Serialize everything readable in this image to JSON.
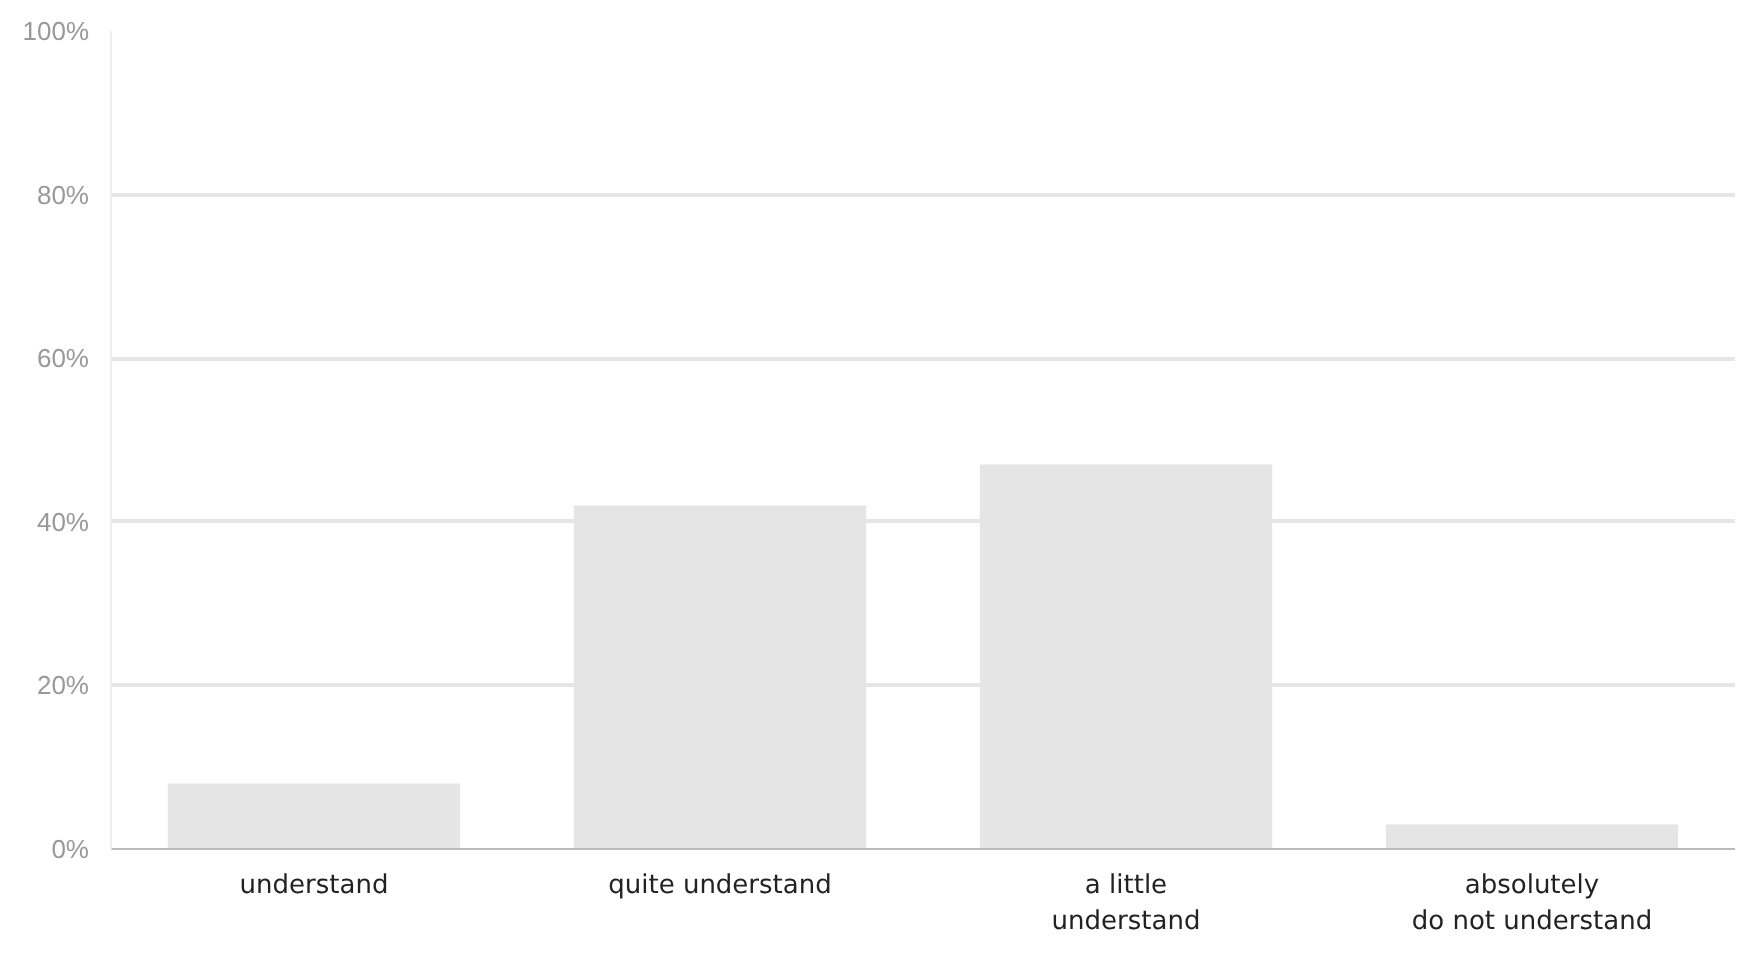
{
  "chart_data": {
    "type": "bar",
    "categories": [
      "understand",
      "quite understand",
      "a little\nunderstand",
      "absolutely\ndo not understand"
    ],
    "values": [
      8,
      42,
      47,
      3
    ],
    "color": "#e5e5e5",
    "ylim": [
      0,
      100
    ],
    "yticks": [
      {
        "value": 0,
        "label": "0%"
      },
      {
        "value": 20,
        "label": "20%"
      },
      {
        "value": 40,
        "label": "40%"
      },
      {
        "value": 60,
        "label": "60%"
      },
      {
        "value": 80,
        "label": "80%"
      },
      {
        "value": 100,
        "label": "100%"
      }
    ],
    "grid": "y"
  }
}
